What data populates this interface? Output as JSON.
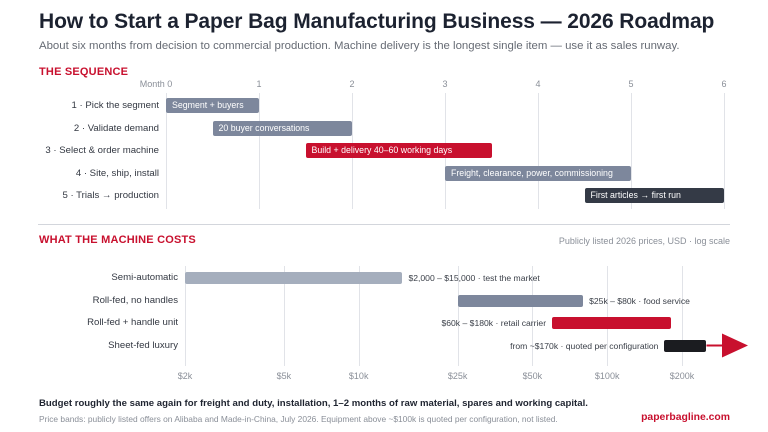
{
  "title": "How to Start a Paper Bag Manufacturing Business — 2026 Roadmap",
  "subtitle": "About six months from decision to commercial production. Machine delivery is the longest single item — use it as sales runway.",
  "colors": {
    "accent": "#c8102e",
    "slate_light": "#a5aebd",
    "slate": "#7d879c",
    "dark": "#343a46",
    "black": "#1b1c20"
  },
  "sequence": {
    "heading": "THE SEQUENCE",
    "axis_ticks": [
      "Month 0",
      "1",
      "2",
      "3",
      "4",
      "5",
      "6"
    ],
    "steps": [
      {
        "label": "1 · Pick the segment",
        "bar": "Segment + buyers",
        "start": 0,
        "end": 1,
        "color": "#7d879c"
      },
      {
        "label": "2 · Validate demand",
        "bar": "20 buyer conversations",
        "start": 0.5,
        "end": 2,
        "color": "#7d879c"
      },
      {
        "label": "3 · Select & order machine",
        "bar": "Build + delivery 40–60 working days",
        "start": 1.5,
        "end": 3.5,
        "color": "#c8102e"
      },
      {
        "label": "4 · Site, ship, install",
        "bar": "Freight, clearance, power, commissioning",
        "start": 3,
        "end": 5,
        "color": "#7d879c"
      },
      {
        "label": "5 · Trials → production",
        "bar": "First articles → first run",
        "start": 4.5,
        "end": 6,
        "color": "#343a46"
      }
    ]
  },
  "costs": {
    "heading": "WHAT THE MACHINE COSTS",
    "note": "Publicly listed 2026 prices, USD · log scale",
    "axis_ticks": [
      "$2k",
      "$5k",
      "$10k",
      "$25k",
      "$50k",
      "$100k",
      "$200k"
    ],
    "rows": [
      {
        "label": "Semi-automatic",
        "value_label": "$2,000 – $15,000 · test the market",
        "low": 2000,
        "high": 15000,
        "color": "#a5aebd"
      },
      {
        "label": "Roll-fed, no handles",
        "value_label": "$25k – $80k · food service",
        "low": 25000,
        "high": 80000,
        "color": "#7d879c"
      },
      {
        "label": "Roll-fed + handle unit",
        "value_label": "$60k – $180k · retail carrier",
        "low": 60000,
        "high": 180000,
        "color": "#c8102e"
      },
      {
        "label": "Sheet-fed luxury",
        "value_label": "from ~$170k · quoted per configuration",
        "low": 170000,
        "high": null,
        "color": "#1b1c20"
      }
    ]
  },
  "footer": {
    "budget": "Budget roughly the same again for freight and duty, installation, 1–2 months of raw material, spares and working capital.",
    "source": "Price bands: publicly listed offers on Alibaba and Made-in-China, July 2026. Equipment above ~$100k is quoted per configuration, not listed.",
    "brand": "paperbagline.com"
  }
}
